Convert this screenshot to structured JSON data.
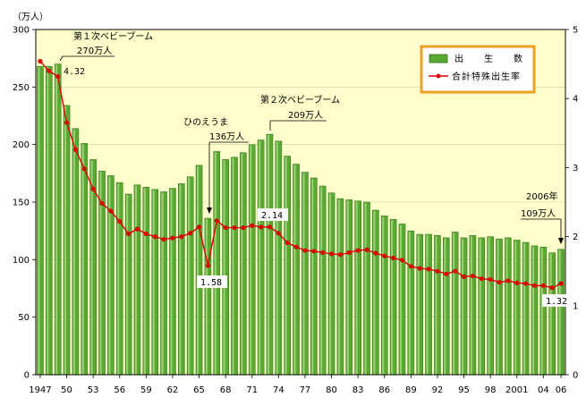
{
  "chart_data": {
    "type": "bar+line",
    "left_axis_unit": "（万人）",
    "y_left_lim": [
      0,
      300
    ],
    "y_left_ticks": [
      "0",
      "50",
      "100",
      "150",
      "200",
      "250",
      "300"
    ],
    "y_right_lim": [
      0,
      5
    ],
    "y_right_ticks": [
      "0",
      "1",
      "2",
      "3",
      "4",
      "5"
    ],
    "x_years": [
      1947,
      1948,
      1949,
      1950,
      1951,
      1952,
      1953,
      1954,
      1955,
      1956,
      1957,
      1958,
      1959,
      1960,
      1961,
      1962,
      1963,
      1964,
      1965,
      1966,
      1967,
      1968,
      1969,
      1970,
      1971,
      1972,
      1973,
      1974,
      1975,
      1976,
      1977,
      1978,
      1979,
      1980,
      1981,
      1982,
      1983,
      1984,
      1985,
      1986,
      1987,
      1988,
      1989,
      1990,
      1991,
      1992,
      1993,
      1994,
      1995,
      1996,
      1997,
      1998,
      1999,
      2000,
      2001,
      2002,
      2003,
      2004,
      2005,
      2006
    ],
    "x_tick_labels": [
      {
        "year": 1947,
        "label": "1947"
      },
      {
        "year": 1950,
        "label": "50"
      },
      {
        "year": 1953,
        "label": "53"
      },
      {
        "year": 1956,
        "label": "56"
      },
      {
        "year": 1959,
        "label": "59"
      },
      {
        "year": 1962,
        "label": "62"
      },
      {
        "year": 1965,
        "label": "65"
      },
      {
        "year": 1968,
        "label": "68"
      },
      {
        "year": 1971,
        "label": "71"
      },
      {
        "year": 1974,
        "label": "74"
      },
      {
        "year": 1977,
        "label": "77"
      },
      {
        "year": 1980,
        "label": "80"
      },
      {
        "year": 1983,
        "label": "83"
      },
      {
        "year": 1986,
        "label": "86"
      },
      {
        "year": 1989,
        "label": "89"
      },
      {
        "year": 1992,
        "label": "92"
      },
      {
        "year": 1995,
        "label": "95"
      },
      {
        "year": 1998,
        "label": "98"
      },
      {
        "year": 2001,
        "label": "2001"
      },
      {
        "year": 2004,
        "label": "04"
      },
      {
        "year": 2006,
        "label": "06"
      }
    ],
    "series": [
      {
        "name": "出　　生　　数",
        "type": "bar",
        "axis": "left",
        "color": "#5aa832",
        "values": [
          268,
          268,
          270,
          234,
          214,
          201,
          187,
          177,
          173,
          167,
          157,
          165,
          163,
          161,
          159,
          162,
          166,
          172,
          182,
          136,
          194,
          187,
          189,
          193,
          200,
          204,
          209,
          203,
          190,
          183,
          176,
          171,
          164,
          158,
          153,
          152,
          151,
          150,
          143,
          138,
          135,
          131,
          125,
          122,
          122,
          121,
          119,
          124,
          119,
          121,
          119,
          120,
          118,
          119,
          117,
          115,
          112,
          111,
          106,
          109
        ]
      },
      {
        "name": "合計特殊出生率",
        "type": "line",
        "axis": "right",
        "color": "#dd0000",
        "values": [
          4.54,
          4.4,
          4.32,
          3.65,
          3.26,
          2.98,
          2.69,
          2.48,
          2.37,
          2.22,
          2.04,
          2.11,
          2.04,
          2.0,
          1.96,
          1.98,
          2.0,
          2.05,
          2.14,
          1.58,
          2.23,
          2.13,
          2.13,
          2.13,
          2.16,
          2.14,
          2.14,
          2.05,
          1.91,
          1.85,
          1.8,
          1.79,
          1.77,
          1.75,
          1.74,
          1.77,
          1.8,
          1.81,
          1.76,
          1.72,
          1.69,
          1.66,
          1.57,
          1.54,
          1.53,
          1.5,
          1.46,
          1.5,
          1.42,
          1.43,
          1.39,
          1.38,
          1.34,
          1.36,
          1.33,
          1.32,
          1.29,
          1.29,
          1.26,
          1.32
        ]
      }
    ],
    "data_labels": [
      {
        "year": 1949,
        "text": "4.32"
      },
      {
        "year": 1966,
        "text": "1.58"
      },
      {
        "year": 1973,
        "text": "2.14"
      },
      {
        "year": 2006,
        "text": "1.32"
      }
    ],
    "annotations": {
      "boom1_title": "第１次ベビーブーム",
      "boom1_count": "270万人",
      "hinoe_title": "ひのえうま",
      "hinoe_count": "136万人",
      "boom2_title": "第２次ベビーブーム",
      "boom2_count": "209万人",
      "y2006_title": "2006年",
      "y2006_count": "109万人"
    }
  }
}
